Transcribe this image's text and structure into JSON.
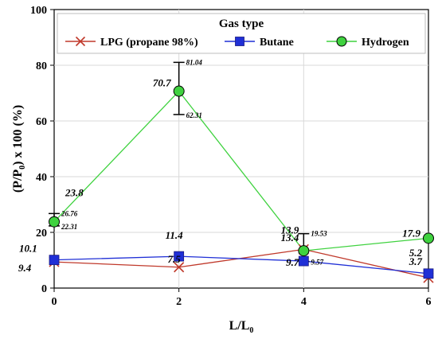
{
  "chart_data": {
    "type": "line",
    "xlabel": "L/L",
    "xlabel_sub": "0",
    "ylabel_pre": "(P/P",
    "ylabel_sub": "0",
    "ylabel_post": ") x 100 (%)",
    "x": [
      0,
      2,
      4,
      6
    ],
    "xlim": [
      0,
      6
    ],
    "ylim": [
      0,
      100
    ],
    "xticks": [
      "0",
      "2",
      "4",
      "6"
    ],
    "yticks": [
      "0",
      "20",
      "40",
      "60",
      "80",
      "100"
    ],
    "legend": {
      "title": "Gas type",
      "position": "top"
    },
    "series": [
      {
        "name": "LPG (propane 98%)",
        "color": "#c0392b",
        "marker": "x",
        "values": [
          9.4,
          7.5,
          13.9,
          3.7
        ],
        "labels": [
          "9.4",
          "7.5",
          "13.9",
          "3.7"
        ]
      },
      {
        "name": "Butane",
        "color": "#1f2fd6",
        "marker": "square",
        "values": [
          10.1,
          11.4,
          9.7,
          5.2
        ],
        "labels": [
          "10.1",
          "11.4",
          "9.7",
          "5.2"
        ]
      },
      {
        "name": "Hydrogen",
        "color": "#3fd23f",
        "marker": "circle",
        "values": [
          23.8,
          70.7,
          13.4,
          17.9
        ],
        "labels": [
          "23.8",
          "70.7",
          "13.4",
          "17.9"
        ]
      }
    ],
    "error_bars": [
      {
        "x": 0,
        "low": 22.31,
        "high": 26.76,
        "low_label": "22.31",
        "high_label": "26.76"
      },
      {
        "x": 2,
        "low": 62.31,
        "high": 81.04,
        "low_label": "62.31",
        "high_label": "81.04"
      },
      {
        "x": 4,
        "low": 9.57,
        "high": 19.53,
        "low_label": "9.57",
        "high_label": "19.53"
      }
    ]
  }
}
